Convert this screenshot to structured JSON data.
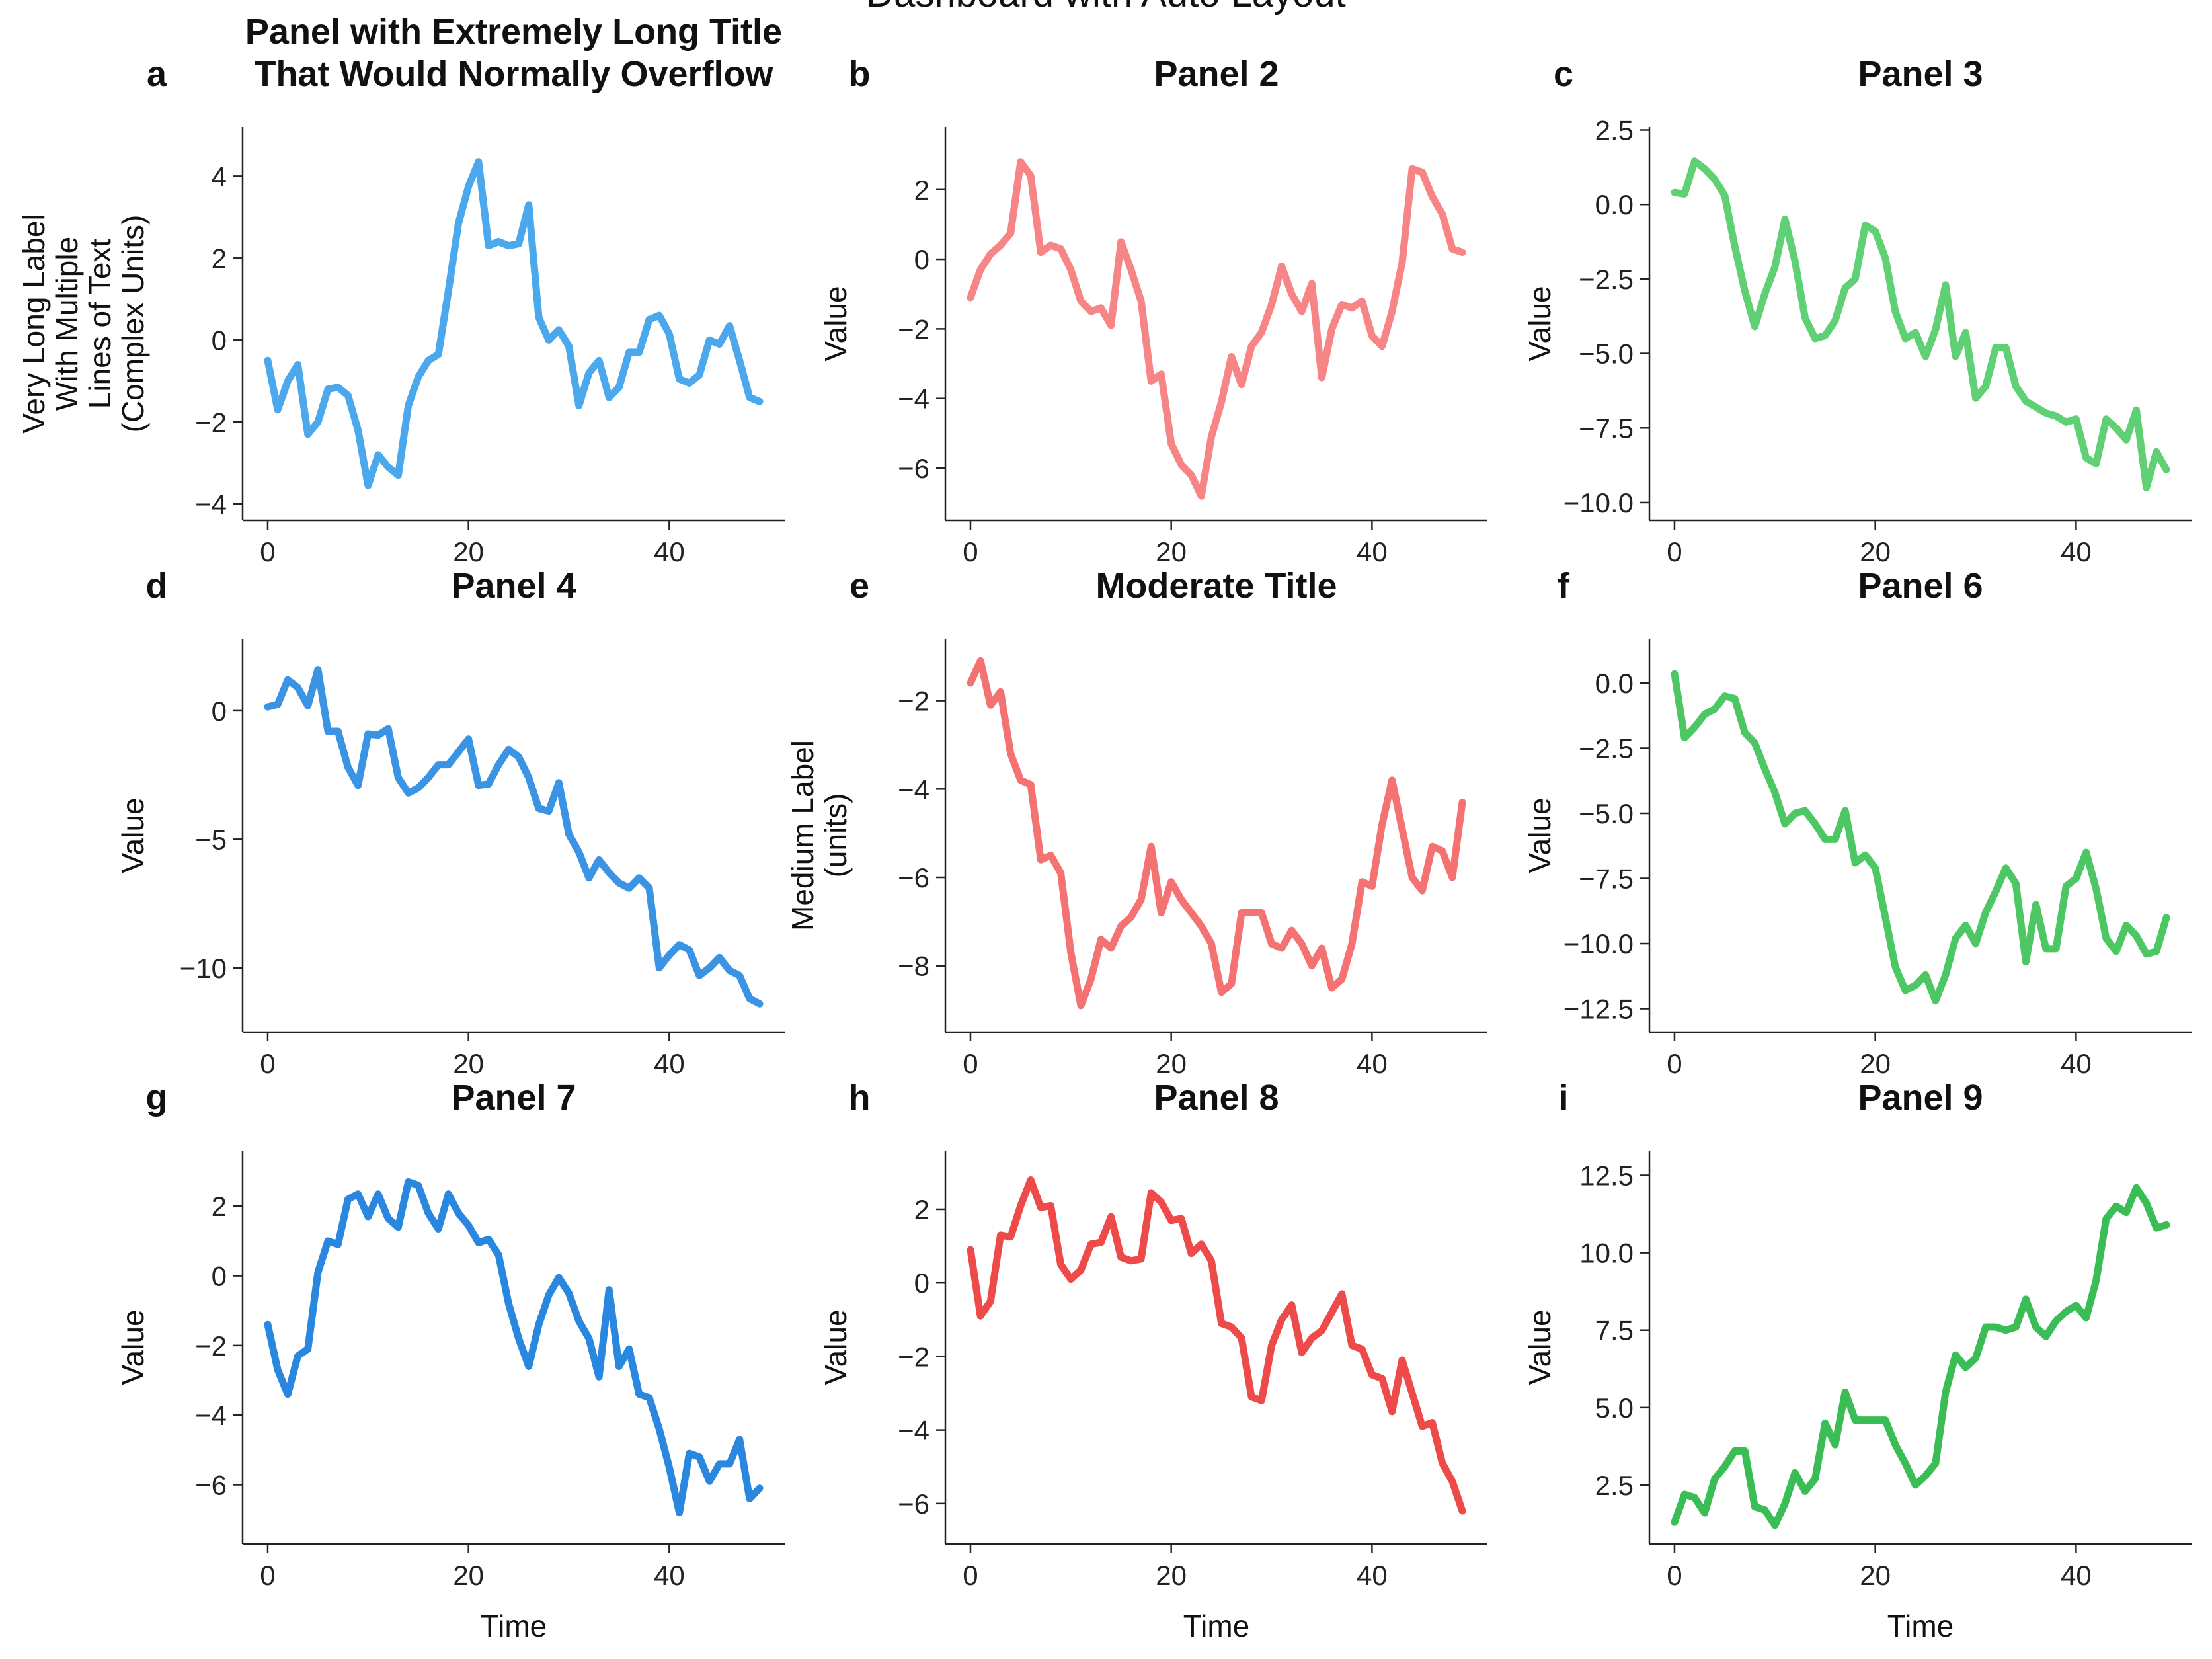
{
  "figure": {
    "title": "Dashboard with Auto Layout"
  },
  "chart_data": [
    {
      "id": "a",
      "letter": "a",
      "type": "line",
      "title": [
        "Panel with Extremely Long Title",
        "That Would Normally Overflow"
      ],
      "ylabel": [
        "Very Long Label",
        "With Multiple",
        "Lines of Text",
        "(Complex Units)"
      ],
      "xlabel": "",
      "color": "#4ba8ec",
      "xlim": [
        -2.5,
        51.5
      ],
      "ylim": [
        -4.4,
        5.2
      ],
      "xticks": [
        0,
        20,
        40
      ],
      "xtick_labels": [
        "0",
        "20",
        "40"
      ],
      "yticks": [
        -4,
        -2,
        0,
        2,
        4
      ],
      "ytick_labels": [
        "−4",
        "−2",
        "0",
        "2",
        "4"
      ],
      "y": [
        -0.5,
        -1.7,
        -1.0,
        -0.6,
        -2.3,
        -2.0,
        -1.2,
        -1.15,
        -1.35,
        -2.2,
        -3.55,
        -2.8,
        -3.1,
        -3.3,
        -1.6,
        -0.9,
        -0.5,
        -0.35,
        1.2,
        2.85,
        3.75,
        4.35,
        2.3,
        2.4,
        2.3,
        2.35,
        3.3,
        0.55,
        0.0,
        0.25,
        -0.15,
        -1.6,
        -0.8,
        -0.5,
        -1.4,
        -1.15,
        -0.3,
        -0.3,
        0.5,
        0.6,
        0.15,
        -0.95,
        -1.05,
        -0.85,
        0.0,
        -0.1,
        0.35,
        -0.5,
        -1.4,
        -1.5
      ]
    },
    {
      "id": "b",
      "letter": "b",
      "type": "line",
      "title": [
        "Panel 2"
      ],
      "ylabel": [
        "Value"
      ],
      "xlabel": "",
      "color": "#f78585",
      "xlim": [
        -2.5,
        51.5
      ],
      "ylim": [
        -7.5,
        3.8
      ],
      "xticks": [
        0,
        20,
        40
      ],
      "xtick_labels": [
        "0",
        "20",
        "40"
      ],
      "yticks": [
        -6,
        -4,
        -2,
        0,
        2
      ],
      "ytick_labels": [
        "−6",
        "−4",
        "−2",
        "0",
        "2"
      ],
      "y": [
        -1.1,
        -0.3,
        0.15,
        0.4,
        0.75,
        2.8,
        2.4,
        0.2,
        0.4,
        0.3,
        -0.3,
        -1.2,
        -1.5,
        -1.4,
        -1.9,
        0.5,
        -0.3,
        -1.2,
        -3.5,
        -3.3,
        -5.3,
        -5.9,
        -6.2,
        -6.8,
        -5.1,
        -4.1,
        -2.8,
        -3.6,
        -2.5,
        -2.1,
        -1.3,
        -0.2,
        -1.0,
        -1.5,
        -0.7,
        -3.4,
        -2.0,
        -1.3,
        -1.4,
        -1.2,
        -2.2,
        -2.5,
        -1.5,
        -0.1,
        2.6,
        2.5,
        1.8,
        1.3,
        0.3,
        0.2
      ]
    },
    {
      "id": "c",
      "letter": "c",
      "type": "line",
      "title": [
        "Panel 3"
      ],
      "ylabel": [
        "Value"
      ],
      "xlabel": "",
      "color": "#5fd174",
      "xlim": [
        -2.5,
        51.5
      ],
      "ylim": [
        -10.6,
        2.6
      ],
      "xticks": [
        0,
        20,
        40
      ],
      "xtick_labels": [
        "0",
        "20",
        "40"
      ],
      "yticks": [
        -10,
        -7.5,
        -5,
        -2.5,
        0,
        2.5
      ],
      "ytick_labels": [
        "−10.0",
        "−7.5",
        "−5.0",
        "−2.5",
        "0.0",
        "2.5"
      ],
      "y": [
        0.4,
        0.35,
        1.45,
        1.2,
        0.85,
        0.3,
        -1.4,
        -2.9,
        -4.1,
        -3.0,
        -2.1,
        -0.5,
        -1.9,
        -3.8,
        -4.5,
        -4.4,
        -3.9,
        -2.8,
        -2.5,
        -0.7,
        -0.9,
        -1.8,
        -3.6,
        -4.5,
        -4.3,
        -5.1,
        -4.2,
        -2.7,
        -5.1,
        -4.3,
        -6.5,
        -6.1,
        -4.8,
        -4.8,
        -6.1,
        -6.6,
        -6.8,
        -7.0,
        -7.1,
        -7.3,
        -7.2,
        -8.5,
        -8.7,
        -7.2,
        -7.5,
        -7.9,
        -6.9,
        -9.5,
        -8.3,
        -8.9
      ]
    },
    {
      "id": "d",
      "letter": "d",
      "type": "line",
      "title": [
        "Panel 4"
      ],
      "ylabel": [
        "Value"
      ],
      "xlabel": "",
      "color": "#3a93e3",
      "xlim": [
        -2.5,
        51.5
      ],
      "ylim": [
        -12.5,
        2.8
      ],
      "xticks": [
        0,
        20,
        40
      ],
      "xtick_labels": [
        "0",
        "20",
        "40"
      ],
      "yticks": [
        -10,
        -5,
        0
      ],
      "ytick_labels": [
        "−10",
        "−5",
        "0"
      ],
      "y": [
        0.15,
        0.25,
        1.2,
        0.9,
        0.2,
        1.6,
        -0.8,
        -0.8,
        -2.2,
        -2.9,
        -0.9,
        -0.95,
        -0.7,
        -2.6,
        -3.2,
        -3.0,
        -2.6,
        -2.1,
        -2.1,
        -1.6,
        -1.1,
        -2.9,
        -2.85,
        -2.1,
        -1.5,
        -1.8,
        -2.6,
        -3.8,
        -3.9,
        -2.8,
        -4.8,
        -5.5,
        -6.5,
        -5.8,
        -6.3,
        -6.7,
        -6.9,
        -6.5,
        -6.9,
        -10.0,
        -9.5,
        -9.1,
        -9.3,
        -10.3,
        -10.0,
        -9.6,
        -10.1,
        -10.3,
        -11.2,
        -11.4
      ]
    },
    {
      "id": "e",
      "letter": "e",
      "type": "line",
      "title": [
        "Moderate Title"
      ],
      "ylabel": [
        "Medium Label",
        "(units)"
      ],
      "xlabel": "",
      "color": "#f57272",
      "xlim": [
        -2.5,
        51.5
      ],
      "ylim": [
        -9.5,
        -0.6
      ],
      "xticks": [
        0,
        20,
        40
      ],
      "xtick_labels": [
        "0",
        "20",
        "40"
      ],
      "yticks": [
        -8,
        -6,
        -4,
        -2
      ],
      "ytick_labels": [
        "−8",
        "−6",
        "−4",
        "−2"
      ],
      "y": [
        -1.6,
        -1.1,
        -2.1,
        -1.8,
        -3.2,
        -3.8,
        -3.9,
        -5.6,
        -5.5,
        -5.9,
        -7.7,
        -8.9,
        -8.3,
        -7.4,
        -7.6,
        -7.1,
        -6.9,
        -6.5,
        -5.3,
        -6.8,
        -6.1,
        -6.5,
        -6.8,
        -7.1,
        -7.5,
        -8.6,
        -8.4,
        -6.8,
        -6.8,
        -6.8,
        -7.5,
        -7.6,
        -7.2,
        -7.5,
        -8.0,
        -7.6,
        -8.5,
        -8.3,
        -7.5,
        -6.1,
        -6.2,
        -4.8,
        -3.8,
        -4.9,
        -6.0,
        -6.3,
        -5.3,
        -5.4,
        -6.0,
        -4.3
      ]
    },
    {
      "id": "f",
      "letter": "f",
      "type": "line",
      "title": [
        "Panel 6"
      ],
      "ylabel": [
        "Value"
      ],
      "xlabel": "",
      "color": "#4cc763",
      "xlim": [
        -2.5,
        51.5
      ],
      "ylim": [
        -13.4,
        1.7
      ],
      "xticks": [
        0,
        20,
        40
      ],
      "xtick_labels": [
        "0",
        "20",
        "40"
      ],
      "yticks": [
        -12.5,
        -10,
        -7.5,
        -5,
        -2.5,
        0
      ],
      "ytick_labels": [
        "−12.5",
        "−10.0",
        "−7.5",
        "−5.0",
        "−2.5",
        "0.0"
      ],
      "y": [
        0.35,
        -2.1,
        -1.7,
        -1.2,
        -1.0,
        -0.5,
        -0.6,
        -1.9,
        -2.3,
        -3.3,
        -4.2,
        -5.4,
        -5.0,
        -4.9,
        -5.4,
        -6.0,
        -6.0,
        -4.9,
        -6.9,
        -6.6,
        -7.1,
        -9.0,
        -10.9,
        -11.8,
        -11.6,
        -11.2,
        -12.2,
        -11.2,
        -9.8,
        -9.3,
        -10.0,
        -8.8,
        -8.0,
        -7.1,
        -7.7,
        -10.7,
        -8.5,
        -10.2,
        -10.2,
        -7.8,
        -7.5,
        -6.5,
        -7.9,
        -9.8,
        -10.3,
        -9.3,
        -9.7,
        -10.4,
        -10.3,
        -9.0
      ]
    },
    {
      "id": "g",
      "letter": "g",
      "type": "line",
      "title": [
        "Panel 7"
      ],
      "ylabel": [
        "Value"
      ],
      "xlabel": "Time",
      "color": "#2a87e0",
      "xlim": [
        -2.5,
        51.5
      ],
      "ylim": [
        -7.7,
        3.6
      ],
      "xticks": [
        0,
        20,
        40
      ],
      "xtick_labels": [
        "0",
        "20",
        "40"
      ],
      "yticks": [
        -6,
        -4,
        -2,
        0,
        2
      ],
      "ytick_labels": [
        "−6",
        "−4",
        "−2",
        "0",
        "2"
      ],
      "y": [
        -1.4,
        -2.7,
        -3.4,
        -2.3,
        -2.1,
        0.1,
        1.0,
        0.9,
        2.2,
        2.35,
        1.7,
        2.35,
        1.65,
        1.4,
        2.7,
        2.6,
        1.8,
        1.35,
        2.35,
        1.8,
        1.45,
        0.95,
        1.05,
        0.6,
        -0.8,
        -1.8,
        -2.6,
        -1.4,
        -0.55,
        -0.05,
        -0.5,
        -1.3,
        -1.8,
        -2.9,
        -0.4,
        -2.6,
        -2.1,
        -3.4,
        -3.5,
        -4.4,
        -5.5,
        -6.8,
        -5.1,
        -5.2,
        -5.9,
        -5.4,
        -5.4,
        -4.7,
        -6.4,
        -6.1
      ]
    },
    {
      "id": "h",
      "letter": "h",
      "type": "line",
      "title": [
        "Panel 8"
      ],
      "ylabel": [
        "Value"
      ],
      "xlabel": "Time",
      "color": "#ef4a4a",
      "xlim": [
        -2.5,
        51.5
      ],
      "ylim": [
        -7.1,
        3.6
      ],
      "xticks": [
        0,
        20,
        40
      ],
      "xtick_labels": [
        "0",
        "20",
        "40"
      ],
      "yticks": [
        -6,
        -4,
        -2,
        0,
        2
      ],
      "ytick_labels": [
        "−6",
        "−4",
        "−2",
        "0",
        "2"
      ],
      "y": [
        0.9,
        -0.9,
        -0.5,
        1.3,
        1.25,
        2.1,
        2.8,
        2.05,
        2.1,
        0.5,
        0.1,
        0.35,
        1.05,
        1.1,
        1.8,
        0.7,
        0.6,
        0.65,
        2.45,
        2.2,
        1.7,
        1.75,
        0.8,
        1.05,
        0.6,
        -1.1,
        -1.2,
        -1.5,
        -3.1,
        -3.2,
        -1.7,
        -1.0,
        -0.6,
        -1.9,
        -1.5,
        -1.3,
        -0.8,
        -0.3,
        -1.7,
        -1.8,
        -2.5,
        -2.6,
        -3.5,
        -2.1,
        -3.0,
        -3.9,
        -3.8,
        -4.9,
        -5.4,
        -6.2
      ]
    },
    {
      "id": "i",
      "letter": "i",
      "type": "line",
      "title": [
        "Panel 9"
      ],
      "ylabel": [
        "Value"
      ],
      "xlabel": "Time",
      "color": "#3bbd55",
      "xlim": [
        -2.5,
        51.5
      ],
      "ylim": [
        0.6,
        13.3
      ],
      "xticks": [
        0,
        20,
        40
      ],
      "xtick_labels": [
        "0",
        "20",
        "40"
      ],
      "yticks": [
        2.5,
        5,
        7.5,
        10,
        12.5
      ],
      "ytick_labels": [
        "2.5",
        "5.0",
        "7.5",
        "10.0",
        "12.5"
      ],
      "y": [
        1.3,
        2.2,
        2.1,
        1.6,
        2.7,
        3.1,
        3.6,
        3.6,
        1.8,
        1.7,
        1.2,
        1.9,
        2.9,
        2.3,
        2.7,
        4.5,
        3.8,
        5.5,
        4.6,
        4.6,
        4.6,
        4.6,
        3.8,
        3.2,
        2.5,
        2.8,
        3.2,
        5.5,
        6.7,
        6.3,
        6.6,
        7.6,
        7.6,
        7.5,
        7.6,
        8.5,
        7.6,
        7.3,
        7.8,
        8.1,
        8.3,
        7.9,
        9.1,
        11.1,
        11.5,
        11.3,
        12.1,
        11.6,
        10.8,
        10.9
      ]
    }
  ]
}
